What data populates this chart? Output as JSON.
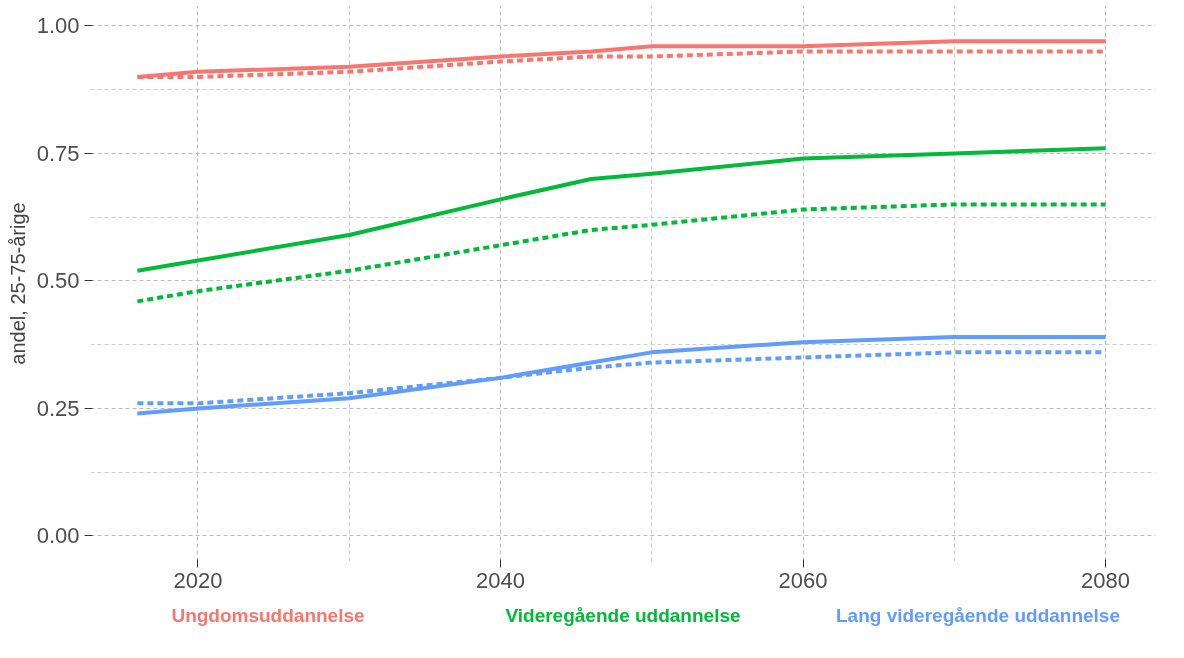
{
  "chart_data": {
    "type": "line",
    "ylabel": "andel, 25-75-årige",
    "xlim": [
      2012.9,
      2083.3
    ],
    "ylim": [
      -0.05,
      1.04
    ],
    "xticks": [
      2020,
      2040,
      2060,
      2080
    ],
    "yticks": [
      {
        "value": 0,
        "label": "0.00"
      },
      {
        "value": 0.25,
        "label": "0.25"
      },
      {
        "value": 0.5,
        "label": "0.50"
      },
      {
        "value": 0.75,
        "label": "0.75"
      },
      {
        "value": 1,
        "label": "1.00"
      }
    ],
    "grid": true,
    "legend": "bottom",
    "line_style": "solid",
    "x": [
      2016,
      2020,
      2030,
      2040,
      2046,
      2050,
      2060,
      2070,
      2080
    ],
    "series": [
      {
        "name": "Ungdomsuddannelse",
        "color": "#f8766d",
        "values": [
          0.9,
          0.91,
          0.92,
          0.94,
          0.95,
          0.96,
          0.96,
          0.97,
          0.97
        ]
      },
      {
        "color": "#f8766d",
        "line_style": "dashed",
        "values": [
          0.9,
          0.9,
          0.91,
          0.93,
          0.94,
          0.94,
          0.95,
          0.95,
          0.95
        ]
      },
      {
        "name": "Videregående uddannelse",
        "color": "#00ba38",
        "values": [
          0.52,
          0.54,
          0.59,
          0.66,
          0.7,
          0.71,
          0.74,
          0.75,
          0.76
        ]
      },
      {
        "color": "#00ba38",
        "line_style": "dashed",
        "values": [
          0.46,
          0.48,
          0.52,
          0.57,
          0.6,
          0.61,
          0.64,
          0.65,
          0.65
        ]
      },
      {
        "name": "Lang videregående uddannelse",
        "color": "#619cff",
        "values": [
          0.24,
          0.25,
          0.27,
          0.31,
          0.34,
          0.36,
          0.38,
          0.39,
          0.39
        ]
      },
      {
        "color": "#619cff",
        "line_style": "dashed",
        "values": [
          0.26,
          0.26,
          0.28,
          0.31,
          0.33,
          0.34,
          0.35,
          0.36,
          0.36
        ]
      }
    ]
  }
}
